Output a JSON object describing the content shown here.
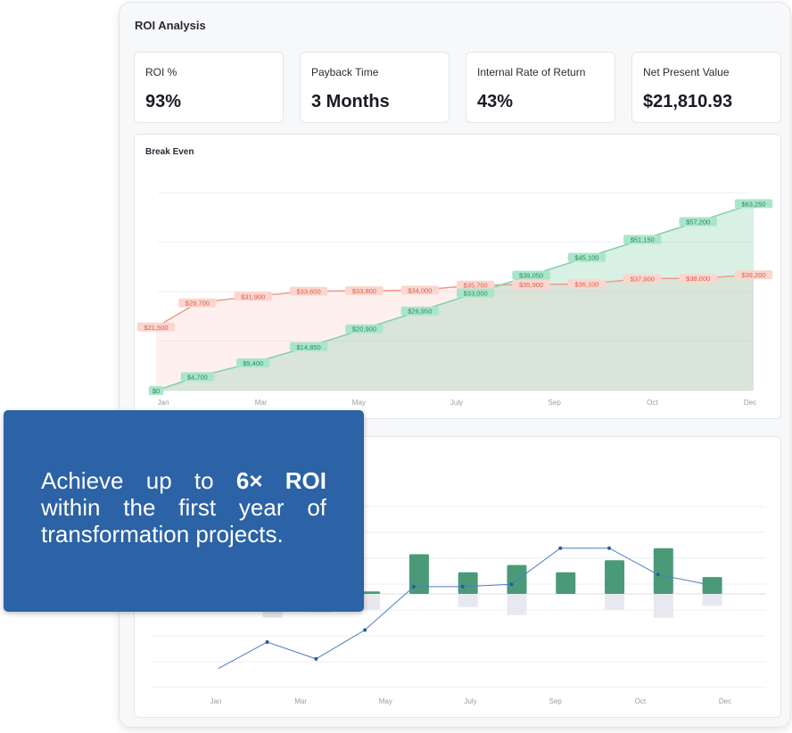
{
  "panel": {
    "title": "ROI Analysis"
  },
  "kpis": [
    {
      "label": "ROI %",
      "value": "93%"
    },
    {
      "label": "Payback Time",
      "value": "3 Months"
    },
    {
      "label": "Internal Rate of Return",
      "value": "43%"
    },
    {
      "label": "Net Present Value",
      "value": "$21,810.93"
    }
  ],
  "promo": {
    "line_start": "Achieve up to",
    "highlight": "6× ROI",
    "line_end": "within the first year of transformation projects."
  },
  "colors": {
    "promo_bg": "#2c62a6",
    "green": "#4a9a78",
    "red_line": "#f09a8c",
    "green_line": "#7fd0ab"
  },
  "chart_data": [
    {
      "type": "area",
      "title": "Break Even",
      "x_tick_labels": [
        "Jan",
        "Mar",
        "May",
        "July",
        "Sep",
        "Oct",
        "Dec"
      ],
      "series": [
        {
          "values": [
            21500,
            29700,
            31900,
            33600,
            33800,
            34000,
            35700,
            35900,
            36100,
            37900,
            38000,
            39200
          ],
          "labels": [
            "$21,500",
            "$29,700",
            "$31,900",
            "$33,600",
            "$33,800",
            "$34,000",
            "$35,700",
            "$35,900",
            "$36,100",
            "$37,900",
            "$38,000",
            "$39,200"
          ]
        },
        {
          "values": [
            0,
            4700,
            9400,
            14850,
            20900,
            26950,
            33000,
            39050,
            45100,
            51150,
            57200,
            63250
          ],
          "labels": [
            "$0",
            "$4,700",
            "$9,400",
            "$14,850",
            "$20,900",
            "$26,950",
            "$33,000",
            "$39,050",
            "$45,100",
            "$51,150",
            "$57,200",
            "$63,250"
          ]
        }
      ],
      "grid": true
    },
    {
      "type": "bar",
      "x_tick_labels": [
        "Jan",
        "Mar",
        "May",
        "July",
        "Sep",
        "Oct",
        "Dec"
      ],
      "positive_bars": [
        0,
        0,
        0,
        0,
        0.1,
        1.65,
        0.9,
        1.2,
        0.9,
        1.4,
        1.9,
        0.7
      ],
      "negative_bars": [
        0,
        0,
        -1.8,
        -1.4,
        -1.2,
        0,
        -1.0,
        -1.6,
        0,
        -1.2,
        -1.8,
        -0.9
      ],
      "line_points": [
        [
          1,
          -3.1
        ],
        [
          2,
          -2.0
        ],
        [
          3,
          -2.7
        ],
        [
          4,
          -1.5
        ],
        [
          5,
          0.3
        ],
        [
          6,
          0.3
        ],
        [
          7,
          0.4
        ],
        [
          8,
          1.9
        ],
        [
          9,
          1.9
        ],
        [
          10,
          0.8
        ],
        [
          11,
          0.4
        ]
      ],
      "grid": true
    }
  ]
}
